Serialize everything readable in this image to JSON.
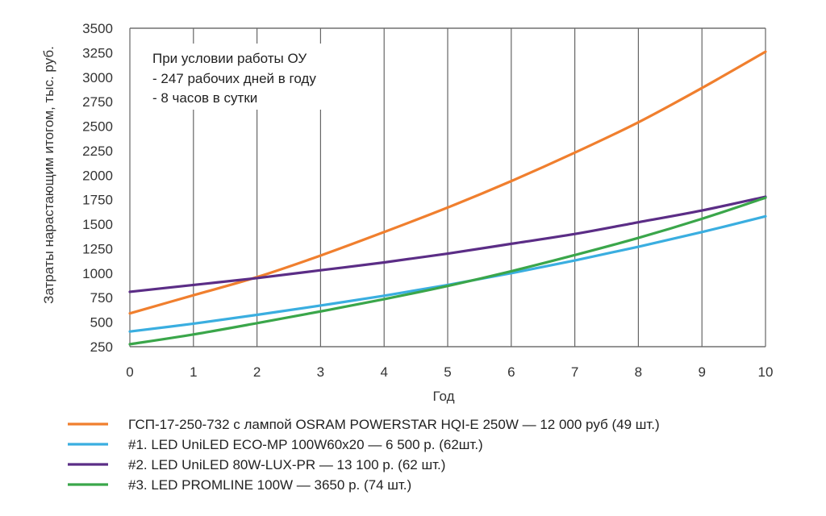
{
  "chart_data": {
    "type": "line",
    "xlabel": "Год",
    "ylabel": "Затраты нарастающим итогом, тыс. руб.",
    "x": [
      0,
      1,
      2,
      3,
      4,
      5,
      6,
      7,
      8,
      9,
      10
    ],
    "xlim": [
      0,
      10
    ],
    "ylim": [
      250,
      3500
    ],
    "xticks": [
      "0",
      "1",
      "2",
      "3",
      "4",
      "5",
      "6",
      "7",
      "8",
      "9",
      "10"
    ],
    "yticks": [
      "250",
      "500",
      "750",
      "1000",
      "1250",
      "1500",
      "1750",
      "2000",
      "2250",
      "2500",
      "2750",
      "3000",
      "3250",
      "3500"
    ],
    "grid": "vertical",
    "annotation": [
      "При условии работы ОУ",
      "- 247 рабочих дней в году",
      "- 8 часов в сутки"
    ],
    "legend_position": "bottom",
    "series": [
      {
        "name": "ГСП-17-250-732 с лампой   OSRAM POWERSTAR HQI-E 250W — 12 000 руб (49 шт.)",
        "color": "#f07f2e",
        "values": [
          590,
          775,
          960,
          1180,
          1420,
          1670,
          1940,
          2230,
          2540,
          2890,
          3260
        ]
      },
      {
        "name": "#1. LED UniLED ECO-MP 100W60x20 — 6 500 р. (62шт.)",
        "color": "#3aaee0",
        "values": [
          405,
          485,
          575,
          670,
          770,
          880,
          1000,
          1130,
          1270,
          1420,
          1580
        ]
      },
      {
        "name": "#2. LED UniLED 80W-LUX-PR — 13 100 р. (62 шт.)",
        "color": "#5b2d86",
        "values": [
          810,
          880,
          950,
          1030,
          1110,
          1200,
          1300,
          1400,
          1520,
          1640,
          1780
        ]
      },
      {
        "name": "#3. LED PROMLINE 100W — 3650 р. (74 шт.)",
        "color": "#3aa64a",
        "values": [
          275,
          375,
          490,
          610,
          735,
          870,
          1020,
          1185,
          1360,
          1555,
          1770
        ]
      }
    ]
  }
}
